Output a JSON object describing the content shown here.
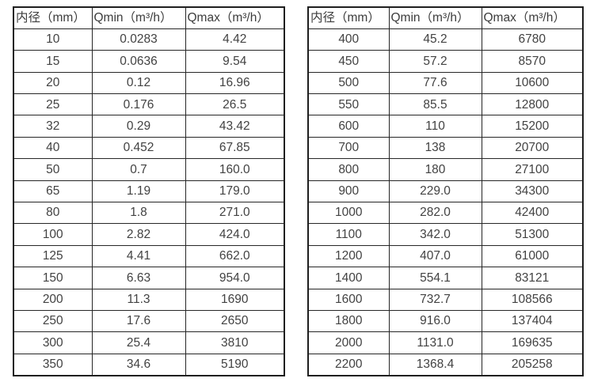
{
  "colors": {
    "background": "#ffffff",
    "border": "#262626",
    "text": "#404040"
  },
  "chart_data": [
    {
      "type": "table",
      "name": "flow-rate-table-small-diameters",
      "headers": [
        "内径（mm）",
        "Qmin（m³/h）",
        "Qmax（m³/h）"
      ],
      "rows": [
        [
          "10",
          "0.0283",
          "4.42"
        ],
        [
          "15",
          "0.0636",
          "9.54"
        ],
        [
          "20",
          "0.12",
          "16.96"
        ],
        [
          "25",
          "0.176",
          "26.5"
        ],
        [
          "32",
          "0.29",
          "43.42"
        ],
        [
          "40",
          "0.452",
          "67.85"
        ],
        [
          "50",
          "0.7",
          "160.0"
        ],
        [
          "65",
          "1.19",
          "179.0"
        ],
        [
          "80",
          "1.8",
          "271.0"
        ],
        [
          "100",
          "2.82",
          "424.0"
        ],
        [
          "125",
          "4.41",
          "662.0"
        ],
        [
          "150",
          "6.63",
          "954.0"
        ],
        [
          "200",
          "11.3",
          "1690"
        ],
        [
          "250",
          "17.6",
          "2650"
        ],
        [
          "300",
          "25.4",
          "3810"
        ],
        [
          "350",
          "34.6",
          "5190"
        ]
      ]
    },
    {
      "type": "table",
      "name": "flow-rate-table-large-diameters",
      "headers": [
        "内径（mm）",
        "Qmin（m³/h）",
        "Qmax（m³/h）"
      ],
      "rows": [
        [
          "400",
          "45.2",
          "6780"
        ],
        [
          "450",
          "57.2",
          "8570"
        ],
        [
          "500",
          "77.6",
          "10600"
        ],
        [
          "550",
          "85.5",
          "12800"
        ],
        [
          "600",
          "110",
          "15200"
        ],
        [
          "700",
          "138",
          "20700"
        ],
        [
          "800",
          "180",
          "27100"
        ],
        [
          "900",
          "229.0",
          "34300"
        ],
        [
          "1000",
          "282.0",
          "42400"
        ],
        [
          "1100",
          "342.0",
          "51300"
        ],
        [
          "1200",
          "407.0",
          "61000"
        ],
        [
          "1400",
          "554.1",
          "83121"
        ],
        [
          "1600",
          "732.7",
          "108566"
        ],
        [
          "1800",
          "916.0",
          "137404"
        ],
        [
          "2000",
          "1131.0",
          "169635"
        ],
        [
          "2200",
          "1368.4",
          "205258"
        ]
      ]
    }
  ]
}
